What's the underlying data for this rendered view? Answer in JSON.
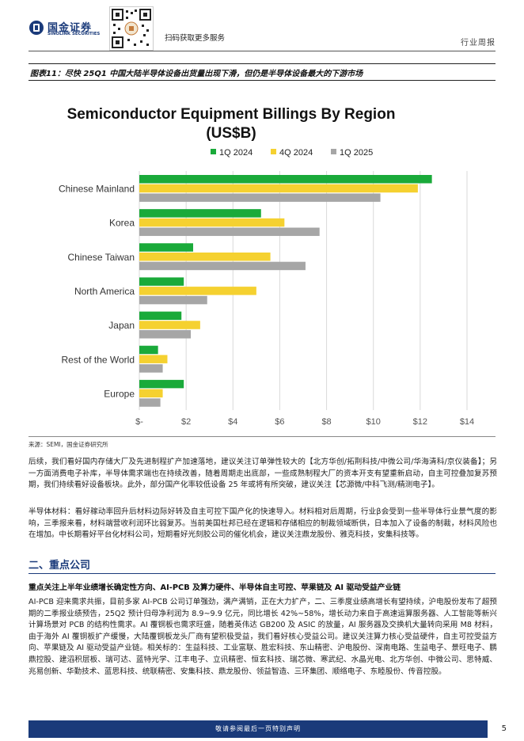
{
  "header": {
    "logo_cn": "国金证券",
    "logo_en": "SINOLINK SECURITIES",
    "scan_text": "扫码获取更多服务",
    "doc_type": "行业周报"
  },
  "figure": {
    "caption": "图表11：尽快 25Q1 中国大陆半导体设备出货量出现下滑，但仍是半导体设备最大的下游市场",
    "source": "来源：SEMI，国金证券研究所"
  },
  "chart_data": {
    "type": "bar",
    "orientation": "horizontal",
    "title_line1": "Semiconductor Equipment Billings By Region",
    "title_line2": "(US$B)",
    "categories": [
      "Chinese Mainland",
      "Korea",
      "Chinese Taiwan",
      "North America",
      "Japan",
      "Rest of the World",
      "Europe"
    ],
    "series": [
      {
        "name": "1Q 2024",
        "color": "#1aaa3a",
        "values": [
          12.5,
          5.2,
          2.3,
          1.9,
          1.8,
          0.8,
          1.9
        ]
      },
      {
        "name": "4Q 2024",
        "color": "#f5d130",
        "values": [
          11.9,
          6.2,
          5.6,
          5.0,
          2.6,
          1.2,
          1.0
        ]
      },
      {
        "name": "1Q 2025",
        "color": "#a6a6a6",
        "values": [
          10.3,
          7.7,
          7.1,
          2.9,
          2.2,
          1.0,
          0.9
        ]
      }
    ],
    "xticks": [
      "$-",
      "$2",
      "$4",
      "$6",
      "$8",
      "$10",
      "$12",
      "$14"
    ],
    "xlim": [
      0,
      14
    ],
    "legend": "top",
    "grid": "vertical"
  },
  "body": {
    "p1": "后续，我们看好国内存储大厂及先进制程扩产加速落地，建议关注订单弹性较大的【北方华创/拓荆科技/中微公司/华海清科/京仪装备】；另一方面消费电子补库，半导体需求端也在持续改善，随着周期走出底部，一些成熟制程大厂的资本开支有望重新启动，自主可控叠加复苏预期，我们持续看好设备板块。此外，部分国产化率较低设备 25 年或将有所突破，建议关注【芯源微/中科飞测/精测电子】。",
    "p2": "半导体材料：看好稼动率回升后材料边际好转及自主可控下国产化的快速导入。材料相对后周期，行业β会受到一些半导体行业景气度的影响，三季报来看，材料端营收利润环比弱复苏。当前美国杜邦已经在逻辑和存储相应的制裁领域断供，日本加入了设备的制裁，材料风险也在增加。中长期看好平台化材料公司，短期看好光刻胶公司的催化机会，建议关注鼎龙股份、雅克科技，安集科技等。",
    "section_title": "二、重点公司",
    "sub_heading": "重点关注上半年业绩增长确定性方向、AI-PCB 及算力硬件、半导体自主可控、苹果链及 AI 驱动受益产业链",
    "p3": "AI-PCB 迎来需求共振，目前多家 AI-PCB 公司订单强劲，满产满销，正在大力扩产，二、三季度业绩高增长有望持续，沪电股份发布了超预期的二季报业绩预告，25Q2 预计归母净利润为 8.9~9.9 亿元，同比增长 42%~58%，增长动力来自于高速运算服务器、人工智能等新兴计算场景对 PCB 的结构性需求。AI 覆铜板也需求旺盛，随着英伟达 GB200 及 ASIC 的放量，AI 服务器及交换机大量转向采用 M8 材料，由于海外 AI 覆铜板扩产缓慢，大陆覆铜板龙头厂商有望积极受益，我们看好核心受益公司。建议关注算力核心受益硬件，自主可控受益方向、苹果链及 AI 驱动受益产业链。相关标的：生益科技、工业富联、胜宏科技、东山精密、沪电股份、深南电路、生益电子、景旺电子、鹏鼎控股、建滔积层板、瑞可达、蓝特光学、江丰电子、立讯精密、恒玄科技、瑞芯微、寒武纪、水晶光电、北方华创、中微公司、思特威、兆易创新、华勤技术、蓝思科技、统联精密、安集科技、鼎龙股份、领益智造、三环集团、顺络电子、东睦股份、传音控股。"
  },
  "footer": {
    "disclaimer": "敬请参阅最后一页特别声明",
    "page_number": "5"
  }
}
